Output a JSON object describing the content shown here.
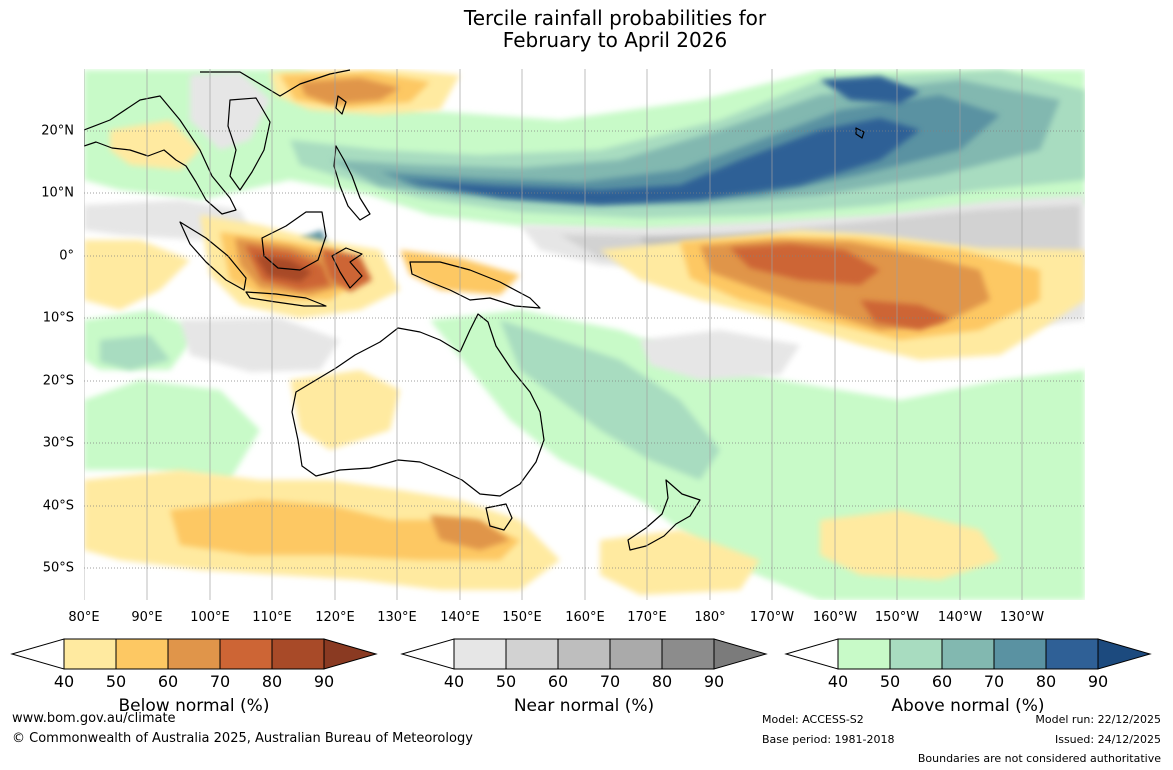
{
  "title": {
    "line1": "Tercile rainfall probabilities for",
    "line2": "February to April 2026"
  },
  "map": {
    "lat_labels": [
      "20°N",
      "10°N",
      "0°",
      "10°S",
      "20°S",
      "30°S",
      "40°S",
      "50°S"
    ],
    "lon_labels": [
      "80°E",
      "90°E",
      "100°E",
      "110°E",
      "120°E",
      "130°E",
      "140°E",
      "150°E",
      "160°E",
      "170°E",
      "180°",
      "170°W",
      "160°W",
      "150°W",
      "140°W",
      "130°W"
    ],
    "colors": {
      "below": [
        "#ffeaa0",
        "#fdc863",
        "#e0954a",
        "#cd6535",
        "#a84a28",
        "#8a3a22"
      ],
      "near": [
        "#e6e6e6",
        "#d2d2d2",
        "#bebebe",
        "#aaaaaa",
        "#8c8c8c",
        "#7b7b7b"
      ],
      "above": [
        "#c8fac8",
        "#a8dcc0",
        "#82b8b0",
        "#5a92a2",
        "#2f6096",
        "#1c4a7e"
      ]
    }
  },
  "colorbars": {
    "below": {
      "title": "Below normal (%)",
      "ticks": [
        "40",
        "50",
        "60",
        "70",
        "80",
        "90"
      ]
    },
    "near": {
      "title": "Near normal (%)",
      "ticks": [
        "40",
        "50",
        "60",
        "70",
        "80",
        "90"
      ]
    },
    "above": {
      "title": "Above normal (%)",
      "ticks": [
        "40",
        "50",
        "60",
        "70",
        "80",
        "90"
      ]
    }
  },
  "footer": {
    "website": "www.bom.gov.au/climate",
    "copyright": "© Commonwealth of Australia 2025, Australian Bureau of Meteorology",
    "model": "Model: ACCESS-S2",
    "base_period": "Base period: 1981-2018",
    "model_run": "Model run: 22/12/2025",
    "issued": "Issued: 24/12/2025",
    "disclaimer": "Boundaries are not considered authoritative"
  }
}
